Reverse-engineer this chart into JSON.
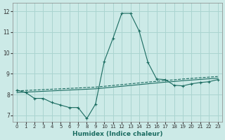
{
  "title": "",
  "xlabel": "Humidex (Indice chaleur)",
  "ylabel": "",
  "bg_color": "#cceae7",
  "grid_color": "#aad4d0",
  "line_color": "#1a6b60",
  "xlim": [
    -0.5,
    23.5
  ],
  "ylim": [
    6.7,
    12.4
  ],
  "xticks": [
    0,
    1,
    2,
    3,
    4,
    5,
    6,
    7,
    8,
    9,
    10,
    11,
    12,
    13,
    14,
    15,
    16,
    17,
    18,
    19,
    20,
    21,
    22,
    23
  ],
  "yticks": [
    7,
    8,
    9,
    10,
    11,
    12
  ],
  "series1_x": [
    0,
    1,
    2,
    3,
    4,
    5,
    6,
    7,
    8,
    9,
    10,
    11,
    12,
    13,
    14,
    15,
    16,
    17,
    18,
    19,
    20,
    21,
    22,
    23
  ],
  "series1_y": [
    8.22,
    8.1,
    7.82,
    7.82,
    7.62,
    7.5,
    7.38,
    7.38,
    6.85,
    7.55,
    9.6,
    10.7,
    11.9,
    11.9,
    11.05,
    9.55,
    8.75,
    8.72,
    8.45,
    8.42,
    8.52,
    8.58,
    8.62,
    8.72
  ],
  "series2_x": [
    0,
    1,
    2,
    3,
    4,
    5,
    6,
    7,
    8,
    9,
    10,
    11,
    12,
    13,
    14,
    15,
    16,
    17,
    18,
    19,
    20,
    21,
    22,
    23
  ],
  "series2_y": [
    8.18,
    8.2,
    8.22,
    8.24,
    8.26,
    8.28,
    8.3,
    8.32,
    8.34,
    8.36,
    8.4,
    8.44,
    8.48,
    8.52,
    8.56,
    8.6,
    8.64,
    8.68,
    8.71,
    8.75,
    8.78,
    8.81,
    8.84,
    8.87
  ],
  "series3_x": [
    0,
    1,
    2,
    3,
    4,
    5,
    6,
    7,
    8,
    9,
    10,
    11,
    12,
    13,
    14,
    15,
    16,
    17,
    18,
    19,
    20,
    21,
    22,
    23
  ],
  "series3_y": [
    8.1,
    8.12,
    8.14,
    8.16,
    8.18,
    8.2,
    8.22,
    8.24,
    8.26,
    8.28,
    8.32,
    8.36,
    8.4,
    8.44,
    8.48,
    8.52,
    8.56,
    8.6,
    8.63,
    8.67,
    8.7,
    8.73,
    8.76,
    8.79
  ]
}
